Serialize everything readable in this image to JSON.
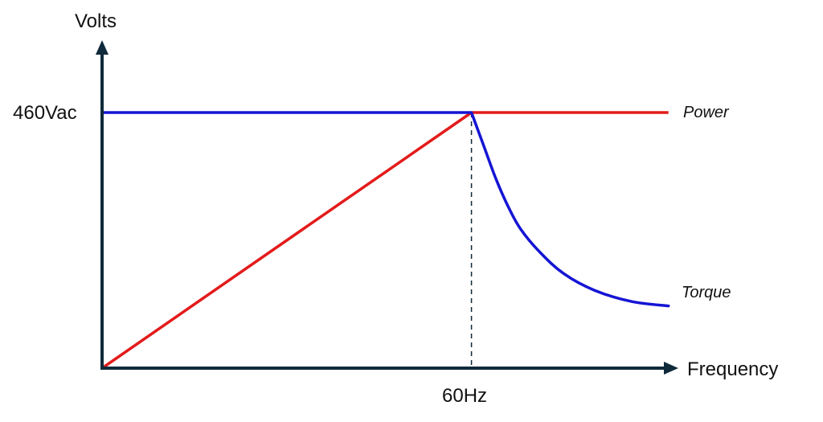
{
  "chart_data": {
    "type": "line",
    "title": "",
    "xlabel": "Frequency",
    "ylabel": "Volts",
    "x_tick_label": "60Hz",
    "y_tick_label": "460Vac",
    "xlim": [
      0,
      100
    ],
    "ylim": [
      0,
      460
    ],
    "x_ref": 60,
    "y_ref": 460,
    "grid": false,
    "series": [
      {
        "name": "Power",
        "color": "#e31b1b",
        "points": [
          [
            0,
            0
          ],
          [
            60,
            460
          ],
          [
            92,
            460
          ]
        ]
      },
      {
        "name": "Torque",
        "color": "#1515d4",
        "points": [
          [
            0,
            460
          ],
          [
            60,
            460
          ],
          [
            62,
            400
          ],
          [
            64,
            340
          ],
          [
            66,
            290
          ],
          [
            68,
            250
          ],
          [
            71,
            210
          ],
          [
            75,
            170
          ],
          [
            80,
            140
          ],
          [
            86,
            120
          ],
          [
            92,
            112
          ]
        ]
      }
    ]
  }
}
